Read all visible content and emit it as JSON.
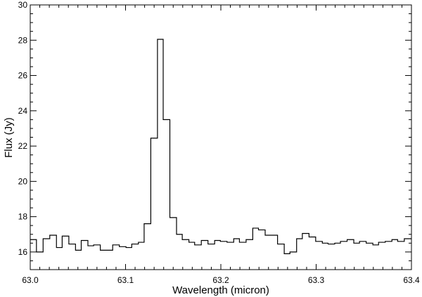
{
  "chart_data": {
    "type": "line",
    "style": "step",
    "title": "",
    "xlabel": "Wavelength (micron)",
    "ylabel": "Flux (Jy)",
    "xlim": [
      63.0,
      63.4
    ],
    "ylim": [
      15.0,
      30.0
    ],
    "x_ticks": [
      63.0,
      63.1,
      63.2,
      63.3,
      63.4
    ],
    "x_tick_labels": [
      "63.0",
      "63.1",
      "63.2",
      "63.3",
      "63.4"
    ],
    "y_ticks": [
      16,
      18,
      20,
      22,
      24,
      26,
      28,
      30
    ],
    "y_tick_labels": [
      "16",
      "18",
      "20",
      "22",
      "24",
      "26",
      "28",
      "30"
    ],
    "grid": false,
    "line_color": "#000000",
    "series": [
      {
        "bin_edges": [
          63.0,
          63.0065,
          63.0135,
          63.0205,
          63.0275,
          63.0335,
          63.0405,
          63.0475,
          63.0535,
          63.0605,
          63.0665,
          63.0735,
          63.0805,
          63.0865,
          63.0935,
          63.1005,
          63.1065,
          63.1135,
          63.1195,
          63.1265,
          63.1335,
          63.1395,
          63.1465,
          63.1535,
          63.1595,
          63.1665,
          63.1725,
          63.1795,
          63.1865,
          63.1935,
          63.1995,
          63.2065,
          63.2135,
          63.2195,
          63.2265,
          63.2335,
          63.2395,
          63.2465,
          63.2525,
          63.2595,
          63.2665,
          63.2725,
          63.2795,
          63.2855,
          63.2925,
          63.2995,
          63.3065,
          63.3125,
          63.3195,
          63.3255,
          63.3325,
          63.3395,
          63.3455,
          63.3525,
          63.3595,
          63.3655,
          63.3725,
          63.3795,
          63.3855,
          63.3925,
          63.4
        ],
        "values": [
          16.7,
          16.0,
          16.75,
          16.95,
          16.25,
          16.9,
          16.45,
          16.1,
          16.65,
          16.35,
          16.4,
          16.1,
          16.1,
          16.4,
          16.3,
          16.25,
          16.45,
          16.55,
          17.6,
          22.45,
          28.05,
          23.5,
          17.95,
          17.0,
          16.7,
          16.55,
          16.4,
          16.65,
          16.45,
          16.65,
          16.6,
          16.55,
          16.75,
          16.55,
          16.7,
          17.35,
          17.25,
          16.95,
          16.95,
          16.45,
          15.9,
          16.0,
          16.75,
          17.05,
          16.85,
          16.6,
          16.5,
          16.45,
          16.5,
          16.6,
          16.7,
          16.5,
          16.6,
          16.5,
          16.4,
          16.55,
          16.6,
          16.7,
          16.6,
          16.75
        ]
      }
    ]
  }
}
